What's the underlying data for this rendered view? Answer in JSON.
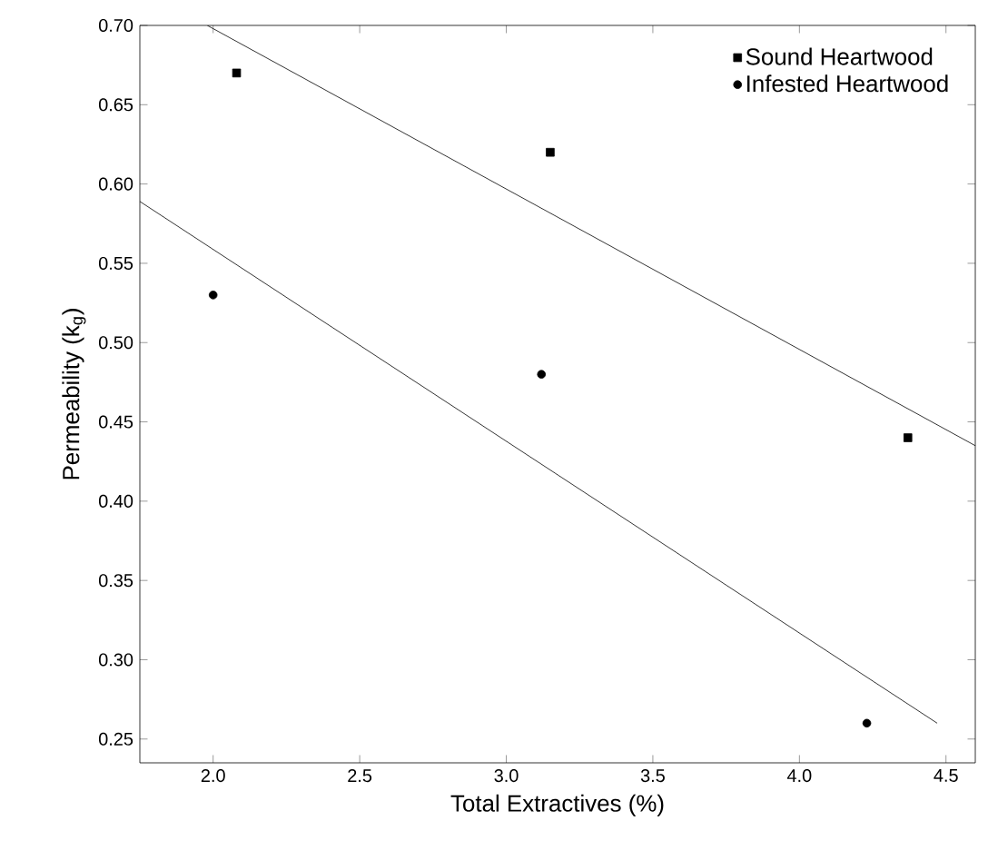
{
  "chart_data": {
    "type": "scatter",
    "xlabel": "Total Extractives (%)",
    "ylabel": "Permeability (k$_{g}$)",
    "xlim": [
      1.75,
      4.6
    ],
    "ylim": [
      0.235,
      0.7
    ],
    "xticks": [
      {
        "value": 2,
        "label": "2.0"
      },
      2.5,
      {
        "value": 3,
        "label": "3.0"
      },
      3.5,
      {
        "value": 4,
        "label": "4.0"
      },
      4.5
    ],
    "yticks": [
      0.25,
      {
        "value": 0.3,
        "label": "0.30"
      },
      0.35,
      {
        "value": 0.4,
        "label": "0.40"
      },
      0.45,
      {
        "value": 0.5,
        "label": "0.50"
      },
      0.55,
      {
        "value": 0.6,
        "label": "0.60"
      },
      0.65,
      {
        "value": 0.7,
        "label": "0.70"
      }
    ],
    "legend": "top right",
    "grid": false,
    "series": [
      {
        "name": "Sound Heartwood",
        "color": "#000000",
        "marker": "square",
        "x": [
          2.08,
          3.15,
          4.37
        ],
        "values": [
          0.67,
          0.62,
          0.44
        ]
      },
      {
        "name": "Infested Heartwood",
        "color": "#000000",
        "marker": "circle",
        "x": [
          2.0,
          3.12,
          4.23
        ],
        "values": [
          0.53,
          0.48,
          0.26
        ]
      },
      {
        "type": "line",
        "color": "#000000",
        "marker": "none",
        "x": [
          1.98,
          4.6
        ],
        "values": [
          0.7,
          0.435
        ]
      },
      {
        "type": "line",
        "color": "#000000",
        "marker": "none",
        "x": [
          1.75,
          4.47
        ],
        "values": [
          0.589,
          0.26
        ]
      }
    ]
  }
}
